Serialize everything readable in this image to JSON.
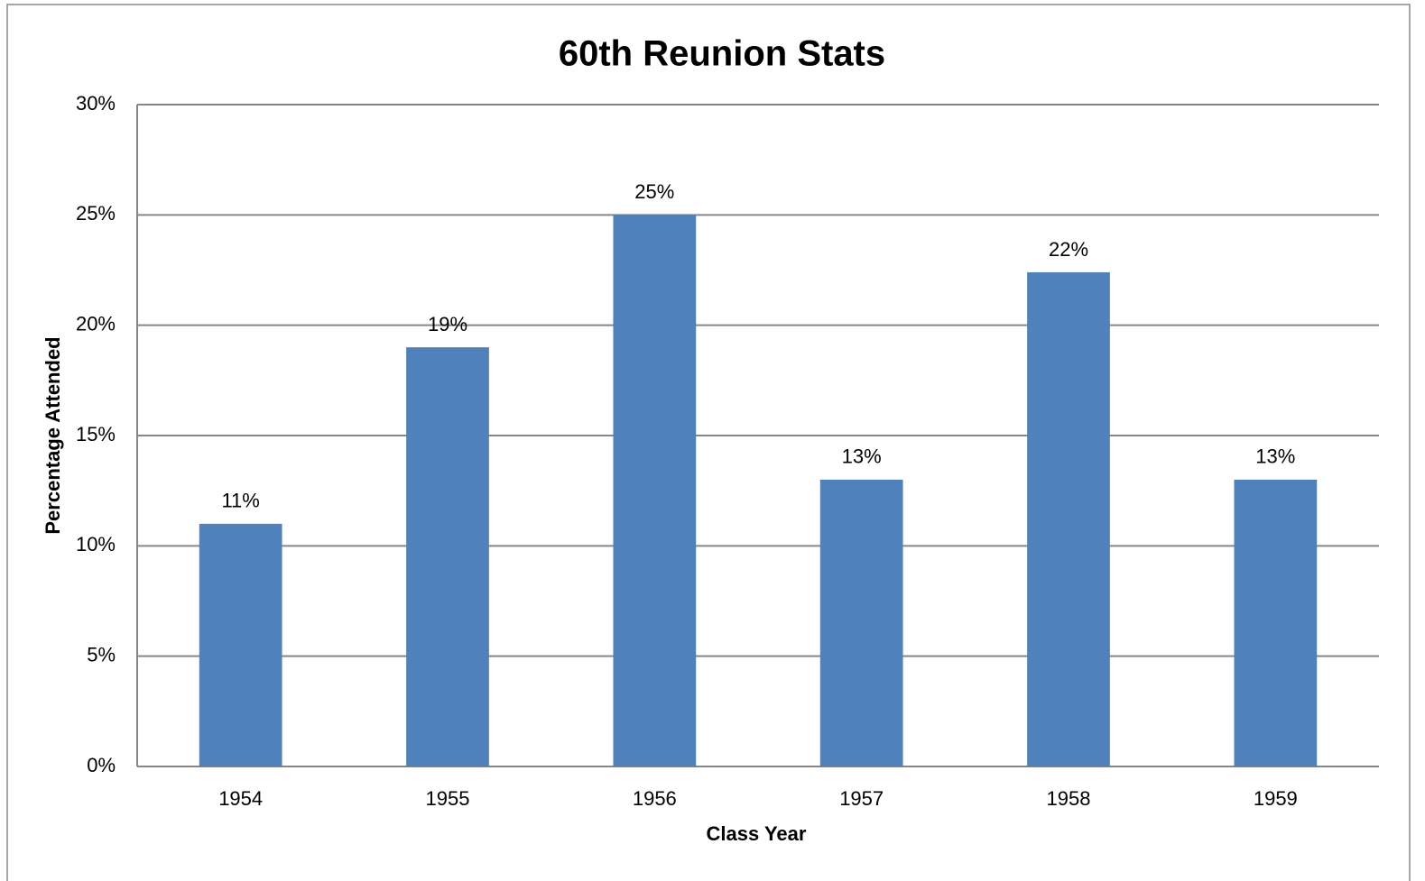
{
  "chart_data": {
    "type": "bar",
    "title": "60th Reunion Stats",
    "x_label": "Class Year",
    "y_label": "Percentage Attended",
    "categories": [
      "1954",
      "1955",
      "1956",
      "1957",
      "1958",
      "1959"
    ],
    "values": [
      11,
      19,
      25,
      13,
      22.4,
      13
    ],
    "value_labels": [
      "11%",
      "19%",
      "25%",
      "13%",
      "22%",
      "13%"
    ],
    "color": "#4f81bd",
    "ylim": [
      0,
      30
    ],
    "yticks": [
      {
        "value": 0,
        "label": "0%"
      },
      {
        "value": 5,
        "label": "5%"
      },
      {
        "value": 10,
        "label": "10%"
      },
      {
        "value": 15,
        "label": "15%"
      },
      {
        "value": 20,
        "label": "20%"
      },
      {
        "value": 25,
        "label": "25%"
      },
      {
        "value": 30,
        "label": "30%"
      }
    ],
    "grid": true
  }
}
